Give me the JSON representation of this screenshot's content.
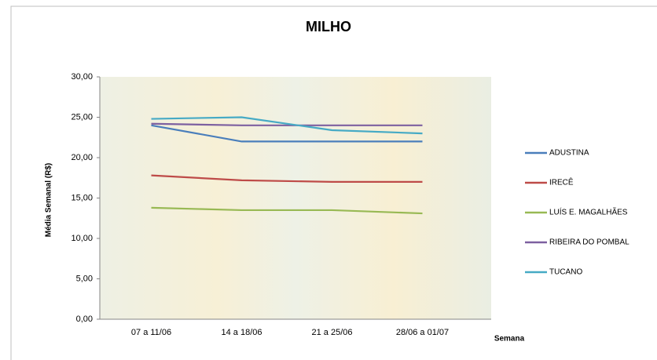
{
  "chart_data": {
    "type": "line",
    "title": "MILHO",
    "x_label": "Semana",
    "y_label": "Média Semanal (R$)",
    "categories": [
      "07 a 11/06",
      "14 a 18/06",
      "21 a 25/06",
      "28/06 a 01/07"
    ],
    "series": [
      {
        "name": "ADUSTINA",
        "color": "#4a7ebb",
        "values": [
          24.0,
          22.0,
          22.0,
          22.0
        ]
      },
      {
        "name": "IRECÊ",
        "color": "#be4b48",
        "values": [
          17.8,
          17.2,
          17.0,
          17.0
        ]
      },
      {
        "name": "LUÍS E. MAGALHÃES",
        "color": "#98b954",
        "values": [
          13.8,
          13.5,
          13.5,
          13.1
        ]
      },
      {
        "name": "RIBEIRA DO POMBAL",
        "color": "#7d60a0",
        "values": [
          24.2,
          24.0,
          24.0,
          24.0
        ]
      },
      {
        "name": "TUCANO",
        "color": "#46aac5",
        "values": [
          24.8,
          25.0,
          23.4,
          23.0
        ]
      }
    ],
    "ylim": [
      0,
      30
    ],
    "yticks": [
      {
        "value": 0,
        "label": "0,00"
      },
      {
        "value": 5,
        "label": "5,00"
      },
      {
        "value": 10,
        "label": "10,00"
      },
      {
        "value": 15,
        "label": "15,00"
      },
      {
        "value": 20,
        "label": "20,00"
      },
      {
        "value": 25,
        "label": "25,00"
      },
      {
        "value": 30,
        "label": "30,00"
      }
    ],
    "legend": "right"
  }
}
